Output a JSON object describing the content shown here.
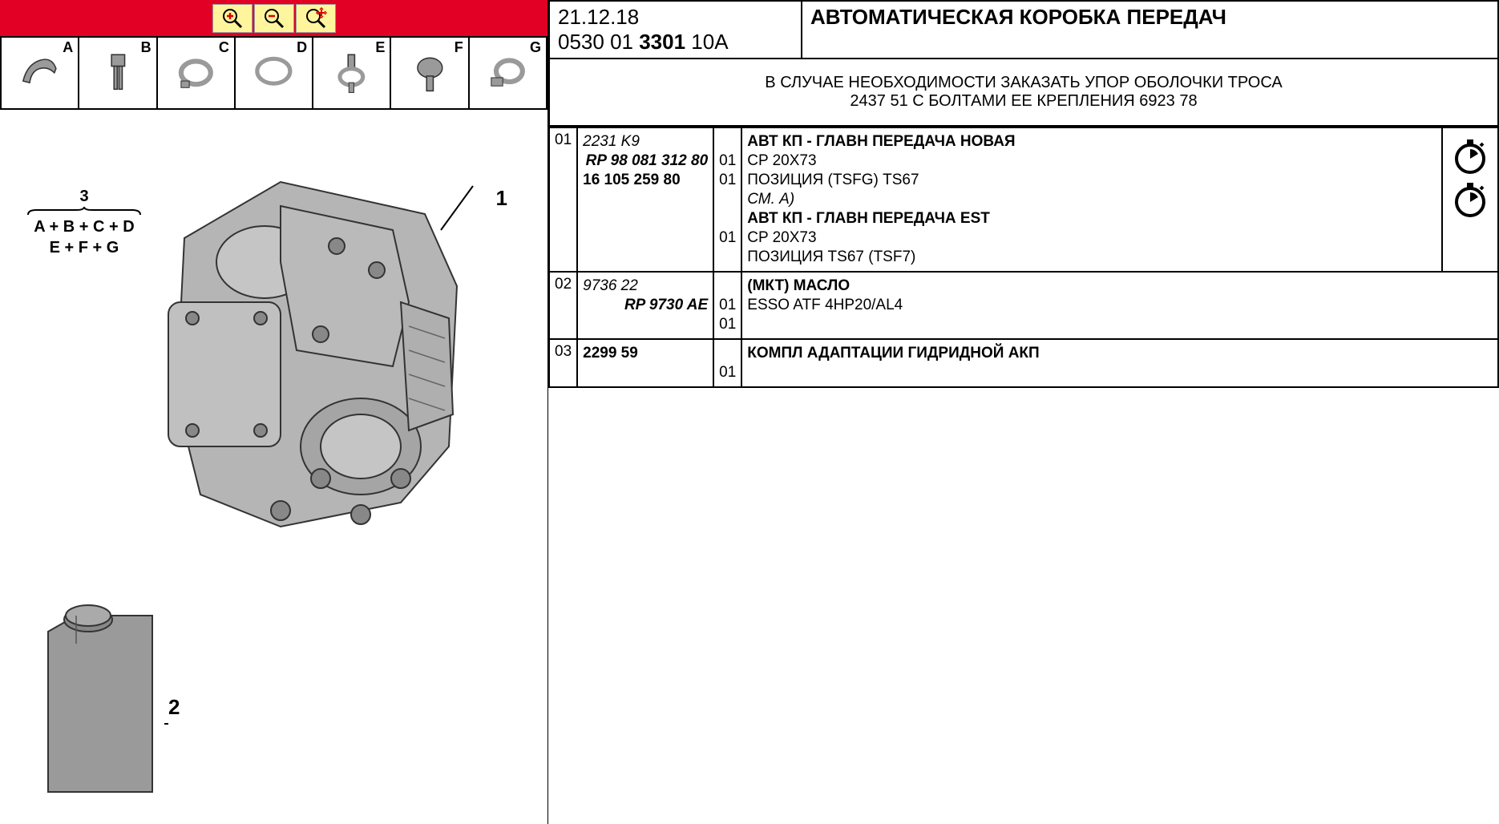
{
  "toolbar": {
    "zoomIn": "zoom-in",
    "zoomOut": "zoom-out",
    "zoomFit": "zoom-fit"
  },
  "thumbnails": {
    "labels": [
      "A",
      "B",
      "C",
      "D",
      "E",
      "F",
      "G"
    ]
  },
  "diagram": {
    "formula": {
      "number": "3",
      "line1": "A + B + C + D",
      "line2": "E + F + G"
    },
    "callouts": {
      "c1": "1",
      "c2": "2"
    }
  },
  "header": {
    "date": "21.12.18",
    "codePrefix": "0530 01 ",
    "codeBold": "3301",
    "codeSuffix": " 10A",
    "title": "АВТОМАТИЧЕСКАЯ КОРОБКА ПЕРЕДАЧ"
  },
  "note": {
    "line1": "В СЛУЧАЕ НЕОБХОДИМОСТИ ЗАКАЗАТЬ УПОР ОБОЛОЧКИ ТРОСА",
    "line2": "2437 51 С БОЛТАМИ ЕЕ КРЕПЛЕНИЯ 6923 78"
  },
  "parts": {
    "rows": [
      {
        "num": "01",
        "refs": [
          {
            "text": "2231 K9",
            "style": "italic"
          },
          {
            "text": "RP 98 081 312 80",
            "style": "bold italic right"
          },
          {
            "text": " ",
            "style": ""
          },
          {
            "text": "16 105 259 80",
            "style": "bold"
          }
        ],
        "qtys": [
          "",
          "01",
          "01",
          "",
          "",
          "01",
          ""
        ],
        "descs": [
          {
            "text": "АВТ КП - ГЛАВН ПЕРЕДАЧА НОВАЯ",
            "style": "bold"
          },
          {
            "text": "CP 20X73",
            "style": ""
          },
          {
            "text": "ПОЗИЦИЯ (TSFG) TS67",
            "style": ""
          },
          {
            "text": "СМ. A)",
            "style": "italic"
          },
          {
            "text": "АВТ КП - ГЛАВН ПЕРЕДАЧА EST",
            "style": "bold"
          },
          {
            "text": "CP 20X73",
            "style": ""
          },
          {
            "text": "ПОЗИЦИЯ TS67 (TSF7)",
            "style": ""
          }
        ],
        "hasTimer": true,
        "timerCount": 2
      },
      {
        "num": "02",
        "refs": [
          {
            "text": "9736 22",
            "style": "italic"
          },
          {
            "text": "RP 9730 AE",
            "style": "bold italic right"
          }
        ],
        "qtys": [
          "",
          "01",
          "01"
        ],
        "descs": [
          {
            "text": "(МКТ) МАСЛО",
            "style": "bold"
          },
          {
            "text": "ESSO ATF 4HP20/AL4",
            "style": ""
          }
        ],
        "hasTimer": false
      },
      {
        "num": "03",
        "refs": [
          {
            "text": "2299 59",
            "style": "bold"
          }
        ],
        "qtys": [
          "",
          "01"
        ],
        "descs": [
          {
            "text": "КОМПЛ АДАПТАЦИИ ГИДРИДНОЙ АКП",
            "style": "bold"
          }
        ],
        "hasTimer": false
      }
    ]
  },
  "colors": {
    "red": "#e20025",
    "yellow": "#fff59d",
    "gray": "#9a9a9a",
    "darkGray": "#6b6b6b"
  }
}
